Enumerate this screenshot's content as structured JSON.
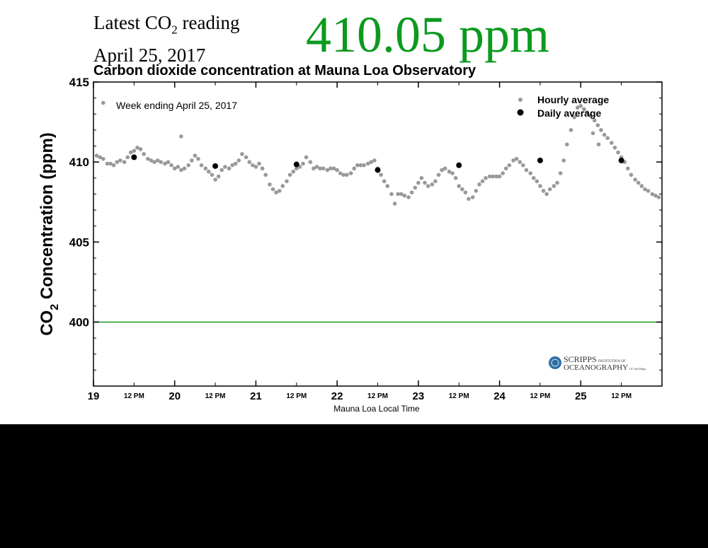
{
  "header": {
    "latest_prefix": "Latest CO",
    "latest_sub": "2",
    "latest_suffix": " reading",
    "date": "April 25, 2017",
    "big_value": "410.05 ppm"
  },
  "chart_data": {
    "type": "scatter",
    "title": "Carbon dioxide concentration at Mauna Loa Observatory",
    "subtitle": "Week ending April 25, 2017",
    "xlabel": "Mauna Loa Local Time",
    "ylabel_prefix": "CO",
    "ylabel_sub": "2",
    "ylabel_suffix": " Concentration (ppm)",
    "xlim": [
      19,
      26
    ],
    "ylim": [
      396,
      415
    ],
    "y_ticks": [
      400,
      405,
      410,
      415
    ],
    "x_major_ticks": [
      {
        "x": 19,
        "label": "19"
      },
      {
        "x": 20,
        "label": "20"
      },
      {
        "x": 21,
        "label": "21"
      },
      {
        "x": 22,
        "label": "22"
      },
      {
        "x": 23,
        "label": "23"
      },
      {
        "x": 24,
        "label": "24"
      },
      {
        "x": 25,
        "label": "25"
      }
    ],
    "x_minor_ticks": [
      {
        "x": 19.5,
        "label": "12 PM"
      },
      {
        "x": 20.5,
        "label": "12 PM"
      },
      {
        "x": 21.5,
        "label": "12 PM"
      },
      {
        "x": 22.5,
        "label": "12 PM"
      },
      {
        "x": 23.5,
        "label": "12 PM"
      },
      {
        "x": 24.5,
        "label": "12 PM"
      },
      {
        "x": 25.5,
        "label": "12 PM"
      }
    ],
    "reference_line": {
      "y": 400,
      "color": "#1a9a1a"
    },
    "legend": [
      {
        "name": "Hourly average",
        "color": "#999999"
      },
      {
        "name": "Daily average",
        "color": "#000000"
      }
    ],
    "legend_position": "top-right",
    "series": [
      {
        "name": "Daily average",
        "x": [
          19.5,
          20.5,
          21.5,
          22.5,
          23.5,
          24.5,
          25.5
        ],
        "y": [
          410.3,
          409.75,
          409.85,
          409.5,
          409.8,
          410.1,
          410.1
        ]
      },
      {
        "name": "Hourly average",
        "x": [
          19.04,
          19.08,
          19.12,
          19.17,
          19.21,
          19.25,
          19.29,
          19.33,
          19.38,
          19.42,
          19.46,
          19.5,
          19.54,
          19.58,
          19.62,
          19.67,
          19.71,
          19.75,
          19.79,
          19.83,
          19.88,
          19.92,
          19.96,
          20.0,
          20.04,
          20.08,
          20.12,
          20.17,
          20.21,
          20.25,
          20.29,
          20.33,
          20.38,
          20.42,
          20.46,
          20.5,
          20.54,
          20.58,
          20.62,
          20.67,
          20.71,
          20.75,
          20.79,
          20.83,
          20.88,
          20.92,
          20.96,
          21.0,
          21.04,
          21.08,
          21.12,
          21.17,
          21.21,
          21.25,
          21.29,
          21.33,
          21.38,
          21.42,
          21.46,
          21.5,
          21.54,
          21.58,
          21.62,
          21.67,
          21.71,
          21.75,
          21.79,
          21.83,
          21.88,
          21.92,
          21.96,
          22.0,
          22.04,
          22.08,
          22.12,
          22.17,
          22.21,
          22.25,
          22.29,
          22.33,
          22.38,
          22.42,
          22.46,
          22.5,
          22.54,
          22.58,
          22.62,
          22.67,
          22.71,
          22.75,
          22.79,
          22.83,
          22.88,
          22.92,
          22.96,
          23.0,
          23.04,
          23.08,
          23.12,
          23.17,
          23.21,
          23.25,
          23.29,
          23.33,
          23.38,
          23.42,
          23.46,
          23.5,
          23.54,
          23.58,
          23.62,
          23.67,
          23.71,
          23.75,
          23.79,
          23.83,
          23.88,
          23.92,
          23.96,
          24.0,
          24.04,
          24.08,
          24.12,
          24.17,
          24.21,
          24.25,
          24.29,
          24.33,
          24.38,
          24.42,
          24.46,
          24.5,
          24.54,
          24.58,
          24.62,
          24.67,
          24.71,
          24.75,
          24.79,
          24.83,
          24.88,
          24.92,
          24.96,
          25.0,
          25.04,
          25.08,
          25.12,
          25.17,
          25.21,
          25.25,
          25.29,
          25.33,
          25.38,
          25.42,
          25.46,
          25.5,
          25.54,
          25.58,
          25.62,
          25.67,
          25.71,
          25.75,
          25.79,
          25.83,
          25.88,
          25.92,
          25.96,
          19.12,
          20.08,
          25.15,
          25.22
        ],
        "y": [
          410.4,
          410.3,
          410.2,
          409.9,
          409.9,
          409.8,
          410.0,
          410.1,
          410.0,
          410.3,
          410.6,
          410.7,
          410.9,
          410.8,
          410.5,
          410.2,
          410.1,
          410.0,
          410.1,
          410.0,
          409.9,
          410.0,
          409.8,
          409.6,
          409.7,
          409.5,
          409.6,
          409.8,
          410.1,
          410.4,
          410.2,
          409.8,
          409.6,
          409.4,
          409.2,
          408.9,
          409.1,
          409.5,
          409.7,
          409.6,
          409.8,
          409.9,
          410.1,
          410.5,
          410.3,
          410.0,
          409.8,
          409.7,
          409.9,
          409.6,
          409.2,
          408.6,
          408.3,
          408.1,
          408.2,
          408.5,
          408.8,
          409.2,
          409.4,
          409.6,
          409.7,
          409.9,
          410.3,
          410.0,
          409.6,
          409.7,
          409.6,
          409.6,
          409.5,
          409.6,
          409.6,
          409.5,
          409.3,
          409.2,
          409.2,
          409.3,
          409.6,
          409.8,
          409.8,
          409.8,
          409.9,
          410.0,
          410.1,
          409.6,
          409.2,
          408.8,
          408.5,
          408.0,
          407.4,
          408.0,
          408.0,
          407.9,
          407.8,
          408.1,
          408.4,
          408.7,
          409.0,
          408.7,
          408.5,
          408.6,
          408.8,
          409.2,
          409.5,
          409.6,
          409.4,
          409.3,
          409.0,
          408.5,
          408.3,
          408.1,
          407.7,
          407.8,
          408.2,
          408.6,
          408.8,
          409.0,
          409.1,
          409.1,
          409.1,
          409.1,
          409.3,
          409.6,
          409.8,
          410.1,
          410.2,
          410.0,
          409.8,
          409.5,
          409.3,
          409.0,
          408.8,
          408.5,
          408.2,
          408.0,
          408.3,
          408.5,
          408.7,
          409.3,
          410.1,
          411.1,
          412.0,
          412.8,
          413.4,
          413.5,
          413.3,
          413.1,
          412.9,
          412.6,
          412.3,
          412.0,
          411.7,
          411.5,
          411.2,
          410.9,
          410.6,
          410.3,
          410.0,
          409.6,
          409.2,
          408.9,
          408.7,
          408.5,
          408.3,
          408.2,
          408.0,
          407.9,
          407.8,
          413.7,
          411.6,
          411.8,
          411.1
        ]
      }
    ]
  },
  "logo": {
    "line1": "SCRIPPS",
    "line1_small": "INSTITUTION OF",
    "line2": "OCEANOGRAPHY",
    "line2_small": "UC San Diego"
  }
}
